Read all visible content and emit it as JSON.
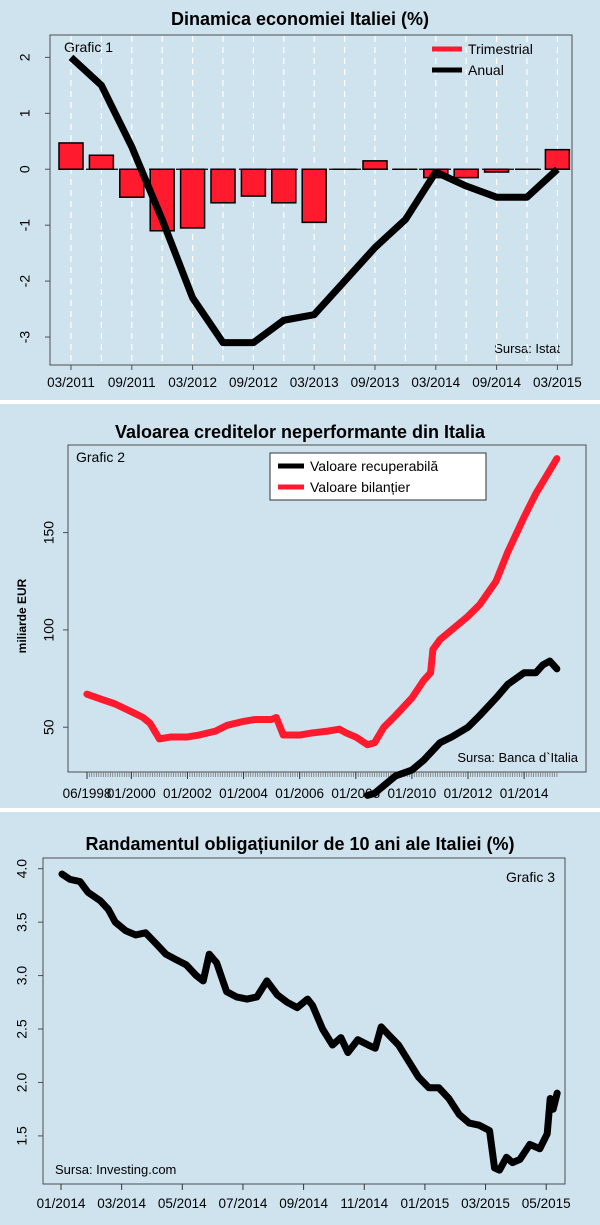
{
  "chart_data": [
    {
      "type": "bar",
      "title": "Dinamica economiei Italiei (%)",
      "panel_label": "Grafic 1",
      "source": "Sursa: Istat",
      "legend_position": "top-right",
      "ylim": [
        -3.5,
        2.4
      ],
      "y_ticks": [
        2,
        1,
        0,
        -1,
        -2,
        -3
      ],
      "x_tick_labels": [
        "03/2011",
        "09/2011",
        "03/2012",
        "09/2012",
        "03/2013",
        "09/2013",
        "03/2014",
        "09/2014",
        "03/2015"
      ],
      "categories": [
        "03/2011",
        "06/2011",
        "09/2011",
        "12/2011",
        "03/2012",
        "06/2012",
        "09/2012",
        "12/2012",
        "03/2013",
        "06/2013",
        "09/2013",
        "12/2013",
        "03/2014",
        "06/2014",
        "09/2014",
        "12/2014",
        "03/2015"
      ],
      "series": [
        {
          "name": "Trimestrial",
          "type": "bar",
          "color": "#ff1a2e",
          "values": [
            0.47,
            0.25,
            -0.5,
            -1.1,
            -1.05,
            -0.6,
            -0.48,
            -0.6,
            -0.95,
            0.0,
            0.15,
            0.0,
            -0.15,
            -0.15,
            -0.05,
            0.0,
            0.35
          ]
        },
        {
          "name": "Anual",
          "type": "line",
          "color": "#000000",
          "values": [
            2.0,
            1.5,
            0.4,
            -0.9,
            -2.3,
            -3.1,
            -3.1,
            -2.7,
            -2.6,
            -2.0,
            -1.4,
            -0.9,
            -0.05,
            -0.3,
            -0.5,
            -0.5,
            0.0
          ]
        }
      ],
      "grid": "vertical dashed"
    },
    {
      "type": "line",
      "title": "Valoarea creditelor neperformante din Italia",
      "panel_label": "Grafic 2",
      "source": "Sursa: Banca d`Italia",
      "ylabel": "miliarde EUR",
      "legend_position": "top-center",
      "ylim": [
        27,
        195
      ],
      "y_ticks": [
        50,
        100,
        150
      ],
      "x_tick_labels": [
        "06/1998",
        "01/2000",
        "01/2002",
        "01/2004",
        "01/2006",
        "01/2008",
        "01/2010",
        "01/2012",
        "01/2014"
      ],
      "series": [
        {
          "name": "Valoare recuperabilă",
          "color": "#000000",
          "points": [
            [
              "2008-06",
              15
            ],
            [
              "2008-09",
              16
            ],
            [
              "2009-01",
              20
            ],
            [
              "2009-06",
              25
            ],
            [
              "2010-01",
              28
            ],
            [
              "2010-06",
              33
            ],
            [
              "2011-01",
              42
            ],
            [
              "2011-06",
              45
            ],
            [
              "2012-01",
              50
            ],
            [
              "2012-06",
              56
            ],
            [
              "2013-01",
              65
            ],
            [
              "2013-06",
              72
            ],
            [
              "2014-01",
              78
            ],
            [
              "2014-06",
              78
            ],
            [
              "2014-09",
              82
            ],
            [
              "2014-12",
              84
            ],
            [
              "2015-03",
              80
            ]
          ]
        },
        {
          "name": "Valoare bilanțier",
          "color": "#ff1a2e",
          "points": [
            [
              "1998-06",
              67
            ],
            [
              "1999-01",
              64
            ],
            [
              "1999-06",
              62
            ],
            [
              "2000-01",
              58
            ],
            [
              "2000-06",
              55
            ],
            [
              "2000-09",
              52
            ],
            [
              "2001-01",
              44
            ],
            [
              "2001-06",
              45
            ],
            [
              "2002-01",
              45
            ],
            [
              "2002-06",
              46
            ],
            [
              "2003-01",
              48
            ],
            [
              "2003-06",
              51
            ],
            [
              "2004-01",
              53
            ],
            [
              "2004-06",
              54
            ],
            [
              "2005-01",
              54
            ],
            [
              "2005-03",
              55
            ],
            [
              "2005-06",
              46
            ],
            [
              "2006-01",
              46
            ],
            [
              "2006-06",
              47
            ],
            [
              "2007-01",
              48
            ],
            [
              "2007-06",
              49
            ],
            [
              "2007-09",
              47
            ],
            [
              "2008-01",
              45
            ],
            [
              "2008-06",
              41
            ],
            [
              "2008-09",
              42
            ],
            [
              "2009-01",
              50
            ],
            [
              "2009-06",
              56
            ],
            [
              "2010-01",
              65
            ],
            [
              "2010-06",
              74
            ],
            [
              "2010-09",
              78
            ],
            [
              "2010-10",
              90
            ],
            [
              "2011-01",
              95
            ],
            [
              "2011-06",
              100
            ],
            [
              "2012-01",
              107
            ],
            [
              "2012-06",
              113
            ],
            [
              "2013-01",
              125
            ],
            [
              "2013-06",
              140
            ],
            [
              "2014-01",
              158
            ],
            [
              "2014-06",
              170
            ],
            [
              "2015-03",
              188
            ]
          ]
        }
      ]
    },
    {
      "type": "line",
      "title": "Randamentul obligațiunilor de 10 ani ale Italiei (%)",
      "panel_label": "Grafic 3",
      "source": "Sursa: Investing.com",
      "ylim": [
        1.05,
        4.1
      ],
      "y_ticks": [
        "4.0",
        "3.5",
        "3.0",
        "2.5",
        "2.0",
        "1.5"
      ],
      "x_tick_labels": [
        "01/2014",
        "03/2014",
        "05/2014",
        "07/2014",
        "09/2014",
        "11/2014",
        "01/2015",
        "03/2015",
        "05/2015"
      ],
      "series": [
        {
          "name": "",
          "color": "#000000",
          "points": [
            [
              "2014-01-02",
              3.95
            ],
            [
              "2014-01-10",
              3.9
            ],
            [
              "2014-01-20",
              3.88
            ],
            [
              "2014-01-28",
              3.78
            ],
            [
              "2014-02-10",
              3.7
            ],
            [
              "2014-02-18",
              3.62
            ],
            [
              "2014-02-25",
              3.5
            ],
            [
              "2014-03-05",
              3.42
            ],
            [
              "2014-03-15",
              3.38
            ],
            [
              "2014-03-25",
              3.4
            ],
            [
              "2014-04-05",
              3.3
            ],
            [
              "2014-04-15",
              3.2
            ],
            [
              "2014-04-25",
              3.15
            ],
            [
              "2014-05-05",
              3.1
            ],
            [
              "2014-05-15",
              3.0
            ],
            [
              "2014-05-22",
              2.95
            ],
            [
              "2014-05-28",
              3.2
            ],
            [
              "2014-06-05",
              3.12
            ],
            [
              "2014-06-15",
              2.85
            ],
            [
              "2014-06-25",
              2.8
            ],
            [
              "2014-07-05",
              2.78
            ],
            [
              "2014-07-15",
              2.8
            ],
            [
              "2014-07-25",
              2.95
            ],
            [
              "2014-08-05",
              2.82
            ],
            [
              "2014-08-15",
              2.75
            ],
            [
              "2014-08-25",
              2.7
            ],
            [
              "2014-09-05",
              2.78
            ],
            [
              "2014-09-10",
              2.72
            ],
            [
              "2014-09-20",
              2.5
            ],
            [
              "2014-09-30",
              2.35
            ],
            [
              "2014-10-08",
              2.42
            ],
            [
              "2014-10-15",
              2.28
            ],
            [
              "2014-10-25",
              2.4
            ],
            [
              "2014-11-05",
              2.35
            ],
            [
              "2014-11-12",
              2.32
            ],
            [
              "2014-11-18",
              2.52
            ],
            [
              "2014-11-25",
              2.45
            ],
            [
              "2014-12-05",
              2.35
            ],
            [
              "2014-12-15",
              2.2
            ],
            [
              "2014-12-25",
              2.05
            ],
            [
              "2015-01-05",
              1.95
            ],
            [
              "2015-01-15",
              1.95
            ],
            [
              "2015-01-25",
              1.85
            ],
            [
              "2015-02-05",
              1.7
            ],
            [
              "2015-02-15",
              1.62
            ],
            [
              "2015-02-25",
              1.6
            ],
            [
              "2015-03-05",
              1.55
            ],
            [
              "2015-03-10",
              1.2
            ],
            [
              "2015-03-15",
              1.18
            ],
            [
              "2015-03-22",
              1.3
            ],
            [
              "2015-03-28",
              1.25
            ],
            [
              "2015-04-05",
              1.28
            ],
            [
              "2015-04-15",
              1.42
            ],
            [
              "2015-04-25",
              1.38
            ],
            [
              "2015-05-02",
              1.52
            ],
            [
              "2015-05-05",
              1.85
            ],
            [
              "2015-05-08",
              1.75
            ],
            [
              "2015-05-12",
              1.9
            ]
          ]
        }
      ]
    }
  ]
}
